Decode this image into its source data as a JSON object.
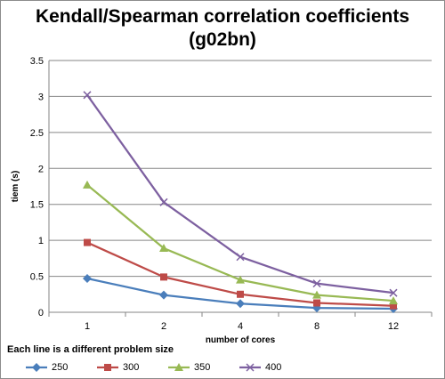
{
  "chart_data": {
    "type": "line",
    "title": "Kendall/Spearman correlation coefficients",
    "subtitle": "(g02bn)",
    "xlabel": "number of cores",
    "ylabel": "tiem (s)",
    "categories": [
      "1",
      "2",
      "4",
      "8",
      "12"
    ],
    "ylim": [
      0,
      3.5
    ],
    "yticks": [
      "0",
      "0.5",
      "1",
      "1.5",
      "2",
      "2.5",
      "3",
      "3.5"
    ],
    "grid": "horizontal",
    "legend_title": "Each line is a different  problem size",
    "legend_position": "bottom",
    "series": [
      {
        "name": "250",
        "values": [
          0.47,
          0.24,
          0.12,
          0.06,
          0.05
        ],
        "color": "#4a7ebb",
        "marker": "diamond"
      },
      {
        "name": "300",
        "values": [
          0.97,
          0.49,
          0.25,
          0.13,
          0.09
        ],
        "color": "#be4b48",
        "marker": "square"
      },
      {
        "name": "350",
        "values": [
          1.77,
          0.89,
          0.45,
          0.24,
          0.16
        ],
        "color": "#98b954",
        "marker": "triangle"
      },
      {
        "name": "400",
        "values": [
          3.02,
          1.53,
          0.77,
          0.4,
          0.27
        ],
        "color": "#7d60a0",
        "marker": "x"
      }
    ]
  }
}
